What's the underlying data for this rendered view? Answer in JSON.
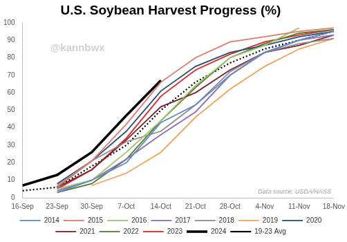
{
  "chart_data": {
    "type": "line",
    "title": "U.S. Soybean Harvest Progress (%)",
    "categories": [
      "16-Sep",
      "23-Sep",
      "30-Sep",
      "7-Oct",
      "14-Oct",
      "21-Oct",
      "28-Oct",
      "4-Nov",
      "11-Nov",
      "18-Nov"
    ],
    "series": [
      {
        "name": "2014",
        "color": "#5b8bc4",
        "line_style": "solid",
        "values": [
          null,
          3,
          10,
          20,
          43,
          53,
          70,
          83,
          90,
          95
        ]
      },
      {
        "name": "2015",
        "color": "#e07b6a",
        "line_style": "solid",
        "values": [
          null,
          7,
          21,
          42,
          66,
          80,
          89,
          92,
          95,
          97
        ]
      },
      {
        "name": "2016",
        "color": "#9cc46b",
        "line_style": "solid",
        "values": [
          null,
          5,
          10,
          26,
          44,
          64,
          80,
          87,
          97,
          null
        ]
      },
      {
        "name": "2017",
        "color": "#8e6bb8",
        "line_style": "solid",
        "values": [
          null,
          4,
          10,
          22,
          36,
          49,
          70,
          83,
          90,
          93
        ]
      },
      {
        "name": "2018",
        "color": "#8c8c8c",
        "line_style": "solid",
        "values": [
          null,
          6,
          21,
          32,
          38,
          53,
          72,
          83,
          88,
          91
        ]
      },
      {
        "name": "2019",
        "color": "#f4a259",
        "line_style": "solid",
        "values": [
          null,
          null,
          7,
          14,
          26,
          46,
          62,
          75,
          85,
          91
        ]
      },
      {
        "name": "2020",
        "color": "#1f4e79",
        "line_style": "solid",
        "values": [
          null,
          8,
          21,
          38,
          61,
          75,
          83,
          87,
          92,
          95
        ]
      },
      {
        "name": "2021",
        "color": "#7b1f2a",
        "line_style": "solid",
        "values": [
          null,
          6,
          16,
          33,
          52,
          60,
          73,
          83,
          87,
          93
        ]
      },
      {
        "name": "2022",
        "color": "#4f7a28",
        "line_style": "solid",
        "values": [
          null,
          3,
          8,
          22,
          44,
          63,
          80,
          88,
          94,
          96
        ]
      },
      {
        "name": "2023",
        "color": "#e8231e",
        "line_style": "solid",
        "values": [
          null,
          5,
          16,
          34,
          58,
          73,
          82,
          89,
          93,
          96
        ]
      },
      {
        "name": "2024",
        "color": "#000000",
        "line_style": "thick",
        "values": [
          7,
          13,
          26,
          47,
          67,
          null,
          null,
          null,
          null,
          null
        ]
      },
      {
        "name": "19-23 Avg",
        "color": "#000000",
        "line_style": "dotted",
        "values": [
          4,
          6,
          18,
          30,
          50,
          66,
          77,
          85,
          90,
          95
        ]
      }
    ],
    "ylim": [
      0,
      100
    ],
    "yticks": [
      0,
      10,
      20,
      30,
      40,
      50,
      60,
      70,
      80,
      90,
      100
    ],
    "grid": false,
    "legend": "bottom",
    "annotations": [
      {
        "text": "@kannbwx"
      },
      {
        "text": "Data source: USDA/NASS"
      }
    ]
  }
}
